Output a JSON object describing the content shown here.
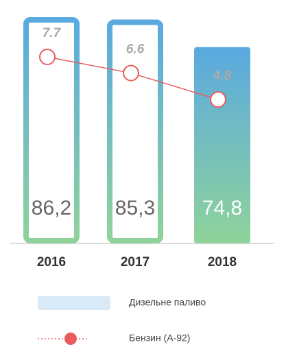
{
  "chart_data": {
    "type": "bar-line",
    "categories": [
      "2016",
      "2017",
      "2018"
    ],
    "series": [
      {
        "name": "Дизельне паливо",
        "type": "bar",
        "color": "#5aa9e0",
        "values": [
          86.2,
          85.3,
          74.8
        ],
        "value_labels": [
          "86,2",
          "85,3",
          "74,8"
        ]
      },
      {
        "name": "Бензин (А-92)",
        "type": "line",
        "color": "#e85c5c",
        "values": [
          7.7,
          6.6,
          4.8
        ],
        "value_labels": [
          "7.7",
          "6.6",
          "4,8"
        ]
      }
    ]
  }
}
